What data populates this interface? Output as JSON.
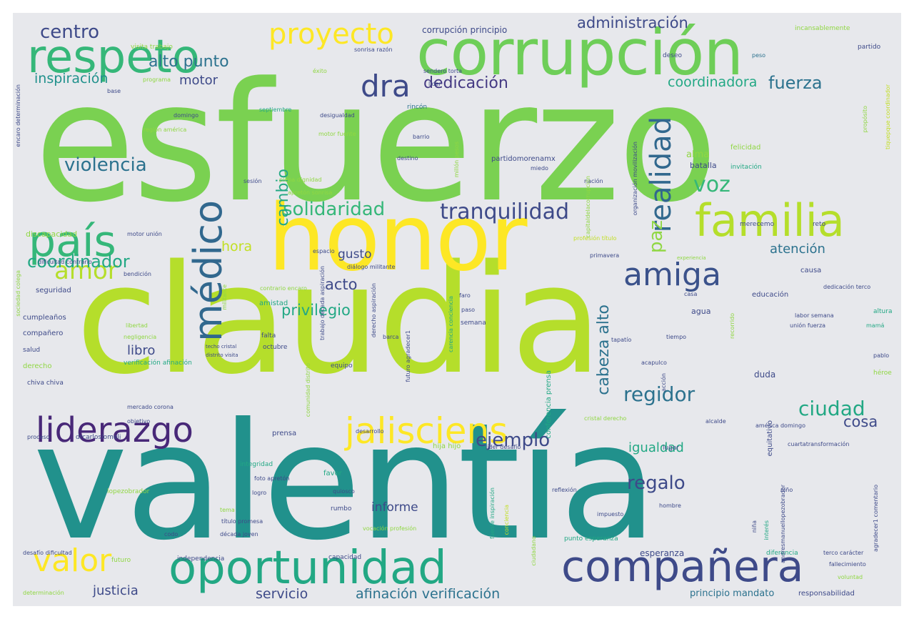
{
  "palette": {
    "background": "#e7e8ec",
    "colors": [
      "#1f9e89",
      "#6ece58",
      "#b5de2b",
      "#fde725",
      "#3e4a89",
      "#482878",
      "#31688e",
      "#26828e",
      "#35b779",
      "#90d743",
      "#440154"
    ]
  },
  "words": [
    {
      "t": "esfuerzo",
      "c": "#7ad151"
    },
    {
      "t": "claudia",
      "c": "#b5de2b"
    },
    {
      "t": "valentía",
      "c": "#21918c"
    },
    {
      "t": "honor",
      "c": "#fde725"
    },
    {
      "t": "corrupción",
      "c": "#6ece58"
    },
    {
      "t": "respeto",
      "c": "#35b779"
    },
    {
      "t": "oportunidad",
      "c": "#22a884"
    },
    {
      "t": "compañera",
      "c": "#3e4a89"
    },
    {
      "t": "familia",
      "c": "#b5de2b"
    },
    {
      "t": "país",
      "c": "#35b779"
    },
    {
      "t": "médico",
      "c": "#31688e"
    },
    {
      "t": "liderazgo",
      "c": "#482878"
    },
    {
      "t": "jalisciens",
      "c": "#fde725"
    },
    {
      "t": "valor",
      "c": "#fde725"
    },
    {
      "t": "amiga",
      "c": "#3b528b"
    },
    {
      "t": "realidad",
      "c": "#31688e"
    },
    {
      "t": "proyecto",
      "c": "#fde725"
    },
    {
      "t": "amor",
      "c": "#b5de2b"
    },
    {
      "t": "dra",
      "c": "#3e4a89"
    },
    {
      "t": "tranquilidad",
      "c": "#3e4a89"
    },
    {
      "t": "solidaridad",
      "c": "#35b779"
    },
    {
      "t": "violencia",
      "c": "#2c728e"
    },
    {
      "t": "coordinador",
      "c": "#22a884"
    },
    {
      "t": "centro",
      "c": "#3e4a89"
    },
    {
      "t": "dedicación",
      "c": "#443983"
    },
    {
      "t": "fuerza",
      "c": "#2c728e"
    },
    {
      "t": "administración",
      "c": "#3e4a89"
    },
    {
      "t": "alto punto",
      "c": "#2c728e"
    },
    {
      "t": "inspiración",
      "c": "#21918c"
    },
    {
      "t": "coordinadora",
      "c": "#22a884"
    },
    {
      "t": "motor",
      "c": "#3e4a89"
    },
    {
      "t": "voz",
      "c": "#35b779"
    },
    {
      "t": "cambio",
      "c": "#22a884"
    },
    {
      "t": "paz",
      "c": "#90d743"
    },
    {
      "t": "cabeza alto",
      "c": "#2c728e"
    },
    {
      "t": "ciudad",
      "c": "#22a884"
    },
    {
      "t": "regidor",
      "c": "#2c728e"
    },
    {
      "t": "ejemplo",
      "c": "#3e4a89"
    },
    {
      "t": "regalo",
      "c": "#3e4a89"
    },
    {
      "t": "privilegio",
      "c": "#22a884"
    },
    {
      "t": "acto",
      "c": "#3e4a89"
    },
    {
      "t": "hora",
      "c": "#c2df23"
    },
    {
      "t": "gusto",
      "c": "#3e4a89"
    },
    {
      "t": "atención",
      "c": "#2c728e"
    },
    {
      "t": "igualdad",
      "c": "#22a884"
    },
    {
      "t": "cosa",
      "c": "#3e4a89"
    },
    {
      "t": "libro",
      "c": "#3e4a89"
    },
    {
      "t": "justicia",
      "c": "#3e4a89"
    },
    {
      "t": "servicio",
      "c": "#3e4a89"
    },
    {
      "t": "afinación verificación",
      "c": "#2c728e"
    },
    {
      "t": "informe",
      "c": "#3e4a89"
    },
    {
      "t": "esperanza",
      "c": "#3e4a89"
    },
    {
      "t": "principio mandato",
      "c": "#2c728e"
    },
    {
      "t": "responsabilidad",
      "c": "#3e4a89"
    },
    {
      "t": "alma",
      "c": "#90d743"
    },
    {
      "t": "batalla",
      "c": "#3e4a89"
    },
    {
      "t": "corrupción principio",
      "c": "#3e4a89"
    },
    {
      "t": "incansablemente",
      "c": "#90d743"
    },
    {
      "t": "partido",
      "c": "#3e4a89"
    },
    {
      "t": "visita trabajo",
      "c": "#90d743"
    },
    {
      "t": "sonrisa razón",
      "c": "#3e4a89"
    },
    {
      "t": "deseo",
      "c": "#3e4a89"
    },
    {
      "t": "peso",
      "c": "#2c728e"
    },
    {
      "t": "éxito",
      "c": "#90d743"
    },
    {
      "t": "sendero torta",
      "c": "#3e4a89"
    },
    {
      "t": "líder",
      "c": "#3e4a89"
    },
    {
      "t": "programa",
      "c": "#90d743"
    },
    {
      "t": "base",
      "c": "#3e4a89"
    },
    {
      "t": "septiembre",
      "c": "#22a884"
    },
    {
      "t": "desigualdad",
      "c": "#3e4a89"
    },
    {
      "t": "rincón",
      "c": "#2c728e"
    },
    {
      "t": "domingo",
      "c": "#3e4a89"
    },
    {
      "t": "región américa",
      "c": "#90d743"
    },
    {
      "t": "motor fuente",
      "c": "#90d743"
    },
    {
      "t": "barrio",
      "c": "#3e4a89"
    },
    {
      "t": "millón pesos",
      "c": "#90d743"
    },
    {
      "t": "destino",
      "c": "#3e4a89"
    },
    {
      "t": "partidomorenamx",
      "c": "#3e4a89"
    },
    {
      "t": "miedo",
      "c": "#3e4a89"
    },
    {
      "t": "felicidad",
      "c": "#90d743"
    },
    {
      "t": "invitación",
      "c": "#22a884"
    },
    {
      "t": "nación",
      "c": "#3e4a89"
    },
    {
      "t": "sesión",
      "c": "#3e4a89"
    },
    {
      "t": "plena dignidad",
      "c": "#90d743"
    },
    {
      "t": "apretón sonrisa",
      "c": "#90d743"
    },
    {
      "t": "discapacidad",
      "c": "#90d743"
    },
    {
      "t": "merecemo",
      "c": "#3e4a89"
    },
    {
      "t": "reto",
      "c": "#3e4a89"
    },
    {
      "t": "motor unión",
      "c": "#3e4a89"
    },
    {
      "t": "profesión título",
      "c": "#c2df23"
    },
    {
      "t": "espacio",
      "c": "#3e4a89"
    },
    {
      "t": "primavera",
      "c": "#3e4a89"
    },
    {
      "t": "experiencia",
      "c": "#90d743"
    },
    {
      "t": "dificultad contrario",
      "c": "#3e4a89"
    },
    {
      "t": "diálogo militante",
      "c": "#3e4a89"
    },
    {
      "t": "bendición",
      "c": "#3e4a89"
    },
    {
      "t": "contrario encaro",
      "c": "#90d743"
    },
    {
      "t": "casa",
      "c": "#3e4a89"
    },
    {
      "t": "dedicación terco",
      "c": "#3e4a89"
    },
    {
      "t": "seguridad",
      "c": "#3e4a89"
    },
    {
      "t": "faro",
      "c": "#3e4a89"
    },
    {
      "t": "educación",
      "c": "#3e4a89"
    },
    {
      "t": "paso",
      "c": "#3e4a89"
    },
    {
      "t": "amistad",
      "c": "#22a884"
    },
    {
      "t": "cumpleaños",
      "c": "#3e4a89"
    },
    {
      "t": "agua",
      "c": "#3e4a89"
    },
    {
      "t": "altura",
      "c": "#22a884"
    },
    {
      "t": "labor semana",
      "c": "#3e4a89"
    },
    {
      "t": "libertad",
      "c": "#90d743"
    },
    {
      "t": "semana",
      "c": "#3e4a89"
    },
    {
      "t": "unión fuerza",
      "c": "#3e4a89"
    },
    {
      "t": "mamá",
      "c": "#22a884"
    },
    {
      "t": "compañero",
      "c": "#3e4a89"
    },
    {
      "t": "negligencia",
      "c": "#90d743"
    },
    {
      "t": "barca",
      "c": "#3e4a89"
    },
    {
      "t": "falta",
      "c": "#3e4a89"
    },
    {
      "t": "tapatío",
      "c": "#3e4a89"
    },
    {
      "t": "tiempo",
      "c": "#3e4a89"
    },
    {
      "t": "salud",
      "c": "#3e4a89"
    },
    {
      "t": "techo cristal",
      "c": "#3e4a89"
    },
    {
      "t": "distrito visita",
      "c": "#3e4a89"
    },
    {
      "t": "octubre",
      "c": "#3e4a89"
    },
    {
      "t": "pablo",
      "c": "#3e4a89"
    },
    {
      "t": "derecho",
      "c": "#90d743"
    },
    {
      "t": "verificación afinación",
      "c": "#22a884"
    },
    {
      "t": "equipo",
      "c": "#3e4a89"
    },
    {
      "t": "acapulco",
      "c": "#3e4a89"
    },
    {
      "t": "héroe",
      "c": "#90d743"
    },
    {
      "t": "chiva chiva",
      "c": "#3e4a89"
    },
    {
      "t": "duda",
      "c": "#3e4a89"
    },
    {
      "t": "mercado corona",
      "c": "#3e4a89"
    },
    {
      "t": "cristal derecho",
      "c": "#90d743"
    },
    {
      "t": "américa domingo",
      "c": "#3e4a89"
    },
    {
      "t": "objetivo",
      "c": "#3e4a89"
    },
    {
      "t": "proceso",
      "c": "#3e4a89"
    },
    {
      "t": "drcarloslomeli",
      "c": "#3e4a89"
    },
    {
      "t": "desarrollo",
      "c": "#3e4a89"
    },
    {
      "t": "hija hijo",
      "c": "#90d743"
    },
    {
      "t": "líder desafío",
      "c": "#3e4a89"
    },
    {
      "t": "lugar",
      "c": "#3e4a89"
    },
    {
      "t": "alcalde",
      "c": "#3e4a89"
    },
    {
      "t": "cuartatransformación",
      "c": "#3e4a89"
    },
    {
      "t": "integridad",
      "c": "#22a884"
    },
    {
      "t": "foto apretón",
      "c": "#3e4a89"
    },
    {
      "t": "favor",
      "c": "#22a884"
    },
    {
      "t": "logro",
      "c": "#3e4a89"
    },
    {
      "t": "lopezobrador",
      "c": "#90d743"
    },
    {
      "t": "quiosco",
      "c": "#3e4a89"
    },
    {
      "t": "reflexión",
      "c": "#3e4a89"
    },
    {
      "t": "niño",
      "c": "#3e4a89"
    },
    {
      "t": "rumbo",
      "c": "#3e4a89"
    },
    {
      "t": "hombre",
      "c": "#3e4a89"
    },
    {
      "t": "tema",
      "c": "#90d743"
    },
    {
      "t": "impuesto",
      "c": "#3e4a89"
    },
    {
      "t": "título promesa",
      "c": "#3e4a89"
    },
    {
      "t": "codo",
      "c": "#3e4a89"
    },
    {
      "t": "vocación profesión",
      "c": "#90d743"
    },
    {
      "t": "década joven",
      "c": "#3e4a89"
    },
    {
      "t": "desafío dificultad",
      "c": "#3e4a89"
    },
    {
      "t": "futuro",
      "c": "#90d743"
    },
    {
      "t": "independencia",
      "c": "#3e4a89"
    },
    {
      "t": "capacidad",
      "c": "#3e4a89"
    },
    {
      "t": "punto esperanza",
      "c": "#22a884"
    },
    {
      "t": "diferencia",
      "c": "#22a884"
    },
    {
      "t": "terco carácter",
      "c": "#3e4a89"
    },
    {
      "t": "fallecimiento",
      "c": "#3e4a89"
    },
    {
      "t": "voluntad",
      "c": "#90d743"
    },
    {
      "t": "determinación",
      "c": "#90d743"
    },
    {
      "t": "causa",
      "c": "#3e4a89"
    },
    {
      "t": "prensa",
      "c": "#3e4a89"
    },
    {
      "t": "conferencia prensa",
      "c": "#22a884"
    },
    {
      "t": "equitativo",
      "c": "#3e4a89"
    },
    {
      "t": "encaro determinación",
      "c": "#3e4a89"
    },
    {
      "t": "tiquepque coordinador",
      "c": "#c2df23"
    },
    {
      "t": "propósito",
      "c": "#90d743"
    },
    {
      "t": "capitaldelacorrupción",
      "c": "#90d743"
    },
    {
      "t": "organización movilización",
      "c": "#3e4a89"
    },
    {
      "t": "trabajo década aspiración",
      "c": "#3e4a89"
    },
    {
      "t": "derecho aspiración",
      "c": "#3e4a89"
    },
    {
      "t": "futuro agradecer1",
      "c": "#3e4a89"
    },
    {
      "t": "fuente inspiración",
      "c": "#22a884"
    },
    {
      "t": "carencia conciencia",
      "c": "#22a884"
    },
    {
      "t": "conciencia",
      "c": "#c2df23"
    },
    {
      "t": "ciudadano",
      "c": "#90d743"
    },
    {
      "t": "acción",
      "c": "#3e4a89"
    },
    {
      "t": "recorrido",
      "c": "#90d743"
    },
    {
      "t": "niña",
      "c": "#3e4a89"
    },
    {
      "t": "interés",
      "c": "#22a884"
    },
    {
      "t": "andresmanuellopezobrador",
      "c": "#3e4a89"
    },
    {
      "t": "agradecer1 comentario",
      "c": "#3e4a89"
    },
    {
      "t": "comunidad distrito",
      "c": "#90d743"
    },
    {
      "t": "sociedad colega",
      "c": "#90d743"
    },
    {
      "t": "militante",
      "c": "#90d743"
    }
  ]
}
